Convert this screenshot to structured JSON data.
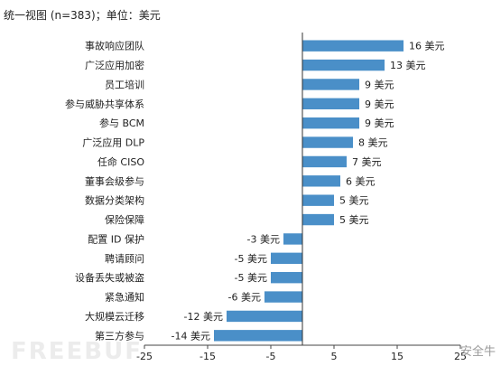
{
  "title": "统一视图 (n=383)；单位：美元",
  "chart_data": {
    "type": "bar",
    "orientation": "horizontal",
    "title": "统一视图 (n=383)；单位：美元",
    "categories": [
      "事故响应团队",
      "广泛应用加密",
      "员工培训",
      "参与威胁共享体系",
      "参与 BCM",
      "广泛应用 DLP",
      "任命 CISO",
      "董事会级参与",
      "数据分类架构",
      "保险保障",
      "配置 ID 保护",
      "聘请顾问",
      "设备丢失或被盗",
      "紧急通知",
      "大规模云迁移",
      "第三方参与"
    ],
    "values": [
      16,
      13,
      9,
      9,
      9,
      8,
      7,
      6,
      5,
      5,
      -3,
      -5,
      -5,
      -6,
      -12,
      -14
    ],
    "value_labels": [
      "16 美元",
      "13 美元",
      "9 美元",
      "9 美元",
      "9 美元",
      "8 美元",
      "7 美元",
      "6 美元",
      "5 美元",
      "5 美元",
      "-3 美元",
      "-5 美元",
      "-5 美元",
      "-6 美元",
      "-12 美元",
      "-14 美元"
    ],
    "xlim": [
      -25,
      25
    ],
    "xticks": [
      -25,
      -15,
      -5,
      5,
      15,
      25
    ],
    "xtick_labels": [
      "-25",
      "-15",
      "-5",
      "5",
      "15",
      "25"
    ],
    "bar_color": "#4a8fc8",
    "grid": false
  },
  "watermarks": {
    "left": "FREEBUF",
    "right": "安全牛"
  }
}
